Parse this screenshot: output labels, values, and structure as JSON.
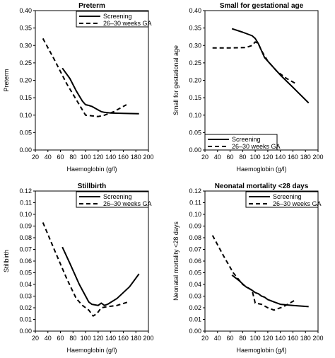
{
  "chart_data": [
    {
      "type": "line",
      "title": "Preterm",
      "xlabel": "Haemoglobin (g/l)",
      "ylabel": "Preterm",
      "xlim": [
        20,
        200
      ],
      "ylim": [
        0,
        0.4
      ],
      "xticks": [
        "20",
        "40",
        "60",
        "80",
        "100",
        "120",
        "140",
        "160",
        "180",
        "200"
      ],
      "yticks": [
        "0.00",
        "0.05",
        "0.10",
        "0.15",
        "0.20",
        "0.25",
        "0.30",
        "0.35",
        "0.40"
      ],
      "legend_position": "top-right",
      "series": [
        {
          "name": "Screening",
          "style": "solid",
          "x": [
            63,
            75,
            85,
            95,
            100,
            105,
            110,
            115,
            120,
            125,
            130,
            140,
            160,
            185
          ],
          "y": [
            0.235,
            0.205,
            0.17,
            0.14,
            0.13,
            0.128,
            0.125,
            0.12,
            0.115,
            0.11,
            0.108,
            0.106,
            0.105,
            0.104
          ]
        },
        {
          "name": "26–30 weeks GA",
          "style": "dashed",
          "x": [
            32,
            50,
            70,
            90,
            100,
            110,
            120,
            130,
            145,
            165
          ],
          "y": [
            0.32,
            0.26,
            0.19,
            0.13,
            0.1,
            0.098,
            0.096,
            0.1,
            0.11,
            0.13
          ]
        }
      ]
    },
    {
      "type": "line",
      "title": "Small for gestational age",
      "xlabel": "Haemoglobin (g/l)",
      "ylabel": "Small for gestational age",
      "xlim": [
        20,
        200
      ],
      "ylim": [
        0,
        0.4
      ],
      "xticks": [
        "20",
        "40",
        "60",
        "80",
        "100",
        "120",
        "140",
        "160",
        "180",
        "200"
      ],
      "yticks": [
        "0.00",
        "0.05",
        "0.10",
        "0.15",
        "0.20",
        "0.25",
        "0.30",
        "0.35",
        "0.40"
      ],
      "legend_position": "bottom-right",
      "series": [
        {
          "name": "Screening",
          "style": "solid",
          "x": [
            63,
            80,
            95,
            100,
            105,
            110,
            115,
            120,
            125,
            130,
            140,
            160,
            185
          ],
          "y": [
            0.348,
            0.338,
            0.328,
            0.32,
            0.305,
            0.285,
            0.265,
            0.255,
            0.245,
            0.235,
            0.215,
            0.18,
            0.135
          ]
        },
        {
          "name": "26–30 weeks GA",
          "style": "dashed",
          "x": [
            32,
            60,
            85,
            95,
            100,
            105,
            110,
            120,
            135,
            150,
            165
          ],
          "y": [
            0.293,
            0.293,
            0.294,
            0.3,
            0.31,
            0.305,
            0.285,
            0.255,
            0.225,
            0.205,
            0.19
          ]
        }
      ]
    },
    {
      "type": "line",
      "title": "Stillbirth",
      "xlabel": "Haemoglobin (g/l)",
      "ylabel": "Stillbirth",
      "xlim": [
        20,
        200
      ],
      "ylim": [
        0,
        0.12
      ],
      "xticks": [
        "20",
        "40",
        "60",
        "80",
        "100",
        "120",
        "140",
        "160",
        "180",
        "200"
      ],
      "yticks": [
        "0.00",
        "0.01",
        "0.02",
        "0.03",
        "0.04",
        "0.05",
        "0.06",
        "0.07",
        "0.08",
        "0.09",
        "0.10",
        "0.11",
        "0.12"
      ],
      "legend_position": "top-right",
      "series": [
        {
          "name": "Screening",
          "style": "solid",
          "x": [
            63,
            75,
            90,
            100,
            105,
            110,
            120,
            125,
            130,
            135,
            150,
            170,
            185
          ],
          "y": [
            0.072,
            0.058,
            0.04,
            0.03,
            0.025,
            0.023,
            0.022,
            0.024,
            0.022,
            0.023,
            0.028,
            0.038,
            0.049
          ]
        },
        {
          "name": "26–30 weeks GA",
          "style": "dashed",
          "x": [
            32,
            50,
            70,
            85,
            95,
            105,
            112,
            118,
            125,
            135,
            150,
            168
          ],
          "y": [
            0.093,
            0.07,
            0.045,
            0.028,
            0.022,
            0.018,
            0.013,
            0.015,
            0.02,
            0.021,
            0.022,
            0.025
          ]
        }
      ]
    },
    {
      "type": "line",
      "title": "Neonatal mortality <28 days",
      "xlabel": "Haemoglobin (g/l)",
      "ylabel": "Neonatal mortality <28 days",
      "xlim": [
        20,
        200
      ],
      "ylim": [
        0,
        0.12
      ],
      "xticks": [
        "20",
        "40",
        "60",
        "80",
        "100",
        "120",
        "140",
        "160",
        "180",
        "200"
      ],
      "yticks": [
        "0.00",
        "0.01",
        "0.02",
        "0.03",
        "0.04",
        "0.05",
        "0.06",
        "0.07",
        "0.08",
        "0.09",
        "0.10",
        "0.11",
        "0.12"
      ],
      "legend_position": "top-right",
      "series": [
        {
          "name": "Screening",
          "style": "solid",
          "x": [
            63,
            75,
            85,
            95,
            100,
            105,
            110,
            115,
            120,
            125,
            130,
            140,
            160,
            185
          ],
          "y": [
            0.048,
            0.043,
            0.038,
            0.035,
            0.033,
            0.032,
            0.03,
            0.029,
            0.027,
            0.026,
            0.025,
            0.023,
            0.022,
            0.021
          ]
        },
        {
          "name": "26–30 weeks GA",
          "style": "dashed",
          "x": [
            32,
            50,
            65,
            80,
            95,
            100,
            110,
            120,
            130,
            145,
            165
          ],
          "y": [
            0.082,
            0.064,
            0.05,
            0.04,
            0.035,
            0.024,
            0.023,
            0.02,
            0.018,
            0.021,
            0.027
          ]
        }
      ]
    }
  ]
}
